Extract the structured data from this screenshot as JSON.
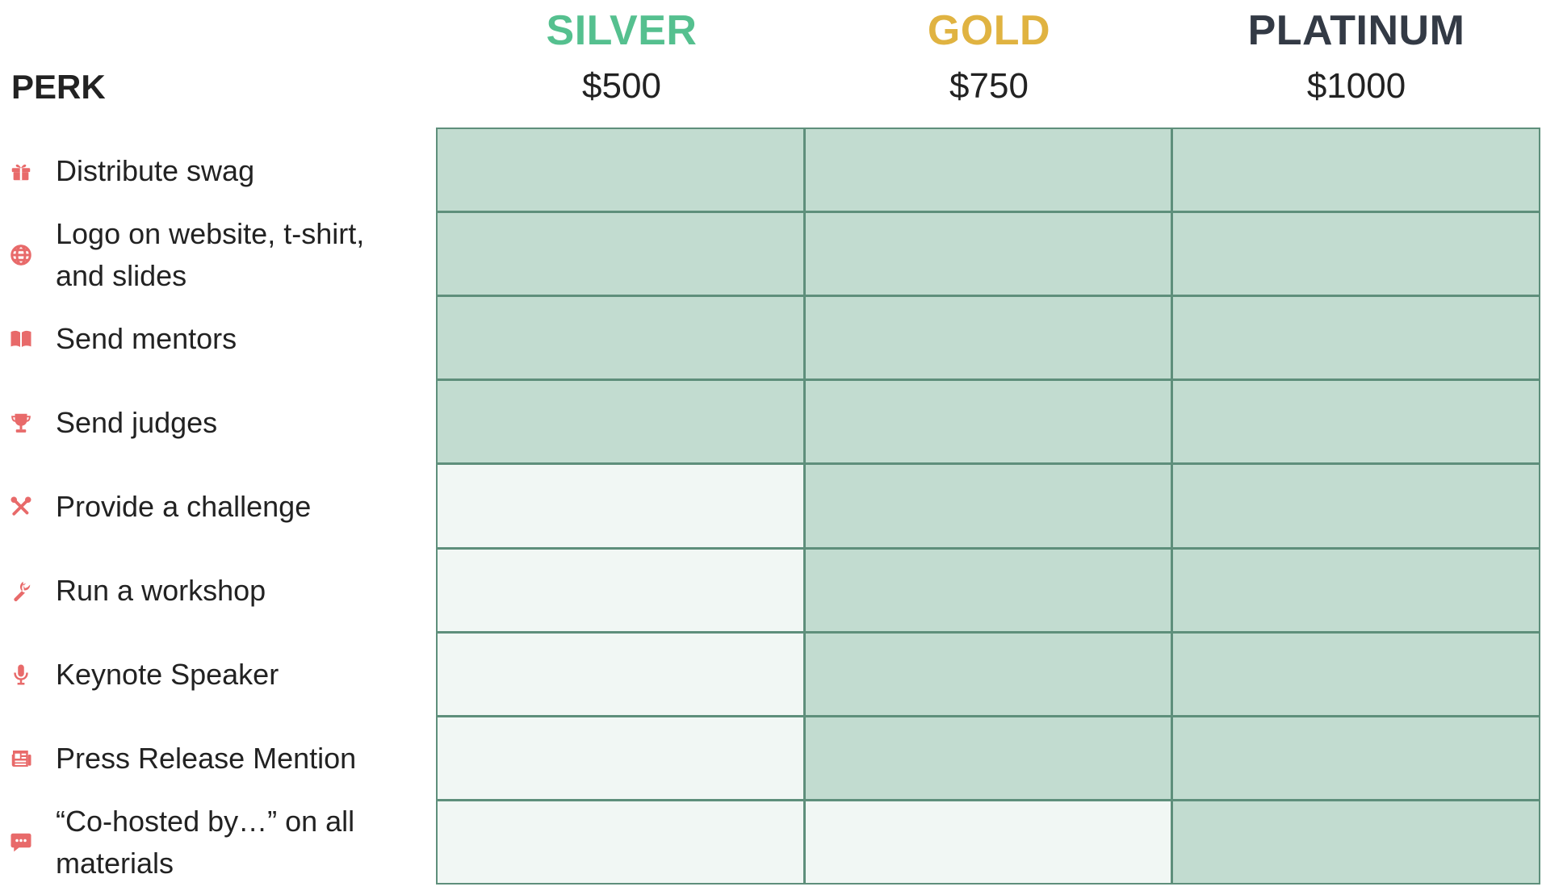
{
  "header": {
    "perk_label": "PERK"
  },
  "tiers": [
    {
      "name": "SILVER",
      "price": "$500",
      "color": "#55c08f"
    },
    {
      "name": "GOLD",
      "price": "$750",
      "color": "#e0b341"
    },
    {
      "name": "PLATINUM",
      "price": "$1000",
      "color": "#333a45"
    }
  ],
  "perks": [
    {
      "label": "Distribute swag",
      "icon": "gift-icon",
      "included": [
        true,
        true,
        true
      ]
    },
    {
      "label": "Logo on website, t-shirt, and slides",
      "icon": "globe-icon",
      "included": [
        true,
        true,
        true
      ]
    },
    {
      "label": "Send mentors",
      "icon": "book-icon",
      "included": [
        true,
        true,
        true
      ]
    },
    {
      "label": "Send judges",
      "icon": "trophy-icon",
      "included": [
        true,
        true,
        true
      ]
    },
    {
      "label": "Provide a challenge",
      "icon": "tools-icon",
      "included": [
        false,
        true,
        true
      ]
    },
    {
      "label": "Run a workshop",
      "icon": "wrench-icon",
      "included": [
        false,
        true,
        true
      ]
    },
    {
      "label": "Keynote Speaker",
      "icon": "microphone-icon",
      "included": [
        false,
        true,
        true
      ]
    },
    {
      "label": "Press Release Mention",
      "icon": "newspaper-icon",
      "included": [
        false,
        true,
        true
      ]
    },
    {
      "label": "“Co-hosted by…” on all materials",
      "icon": "chat-bubble-icon",
      "included": [
        false,
        false,
        true
      ]
    }
  ],
  "colors": {
    "icon": "#e86a6a",
    "grid_line": "#5e8f7b",
    "cell_included": "#c2dcd0",
    "cell_excluded": "#f1f7f4"
  }
}
